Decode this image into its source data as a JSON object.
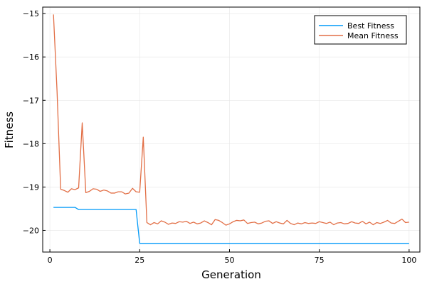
{
  "chart_data": {
    "type": "line",
    "xlabel": "Generation",
    "ylabel": "Fitness",
    "xlim": [
      -2,
      103
    ],
    "ylim": [
      -20.5,
      -14.85
    ],
    "xticks": [
      0,
      25,
      50,
      75,
      100
    ],
    "yticks": [
      -20,
      -19,
      -18,
      -17,
      -16,
      -15
    ],
    "grid": true,
    "legend_position": "top-right",
    "series": [
      {
        "name": "Best Fitness",
        "color": "#009af9",
        "x": [
          1,
          2,
          3,
          4,
          5,
          6,
          7,
          8,
          9,
          10,
          11,
          12,
          13,
          14,
          15,
          16,
          17,
          18,
          19,
          20,
          21,
          22,
          23,
          24,
          25,
          26,
          27,
          28,
          29,
          30,
          31,
          32,
          33,
          34,
          35,
          36,
          37,
          38,
          39,
          40,
          41,
          42,
          43,
          44,
          45,
          46,
          47,
          48,
          49,
          50,
          51,
          52,
          53,
          54,
          55,
          56,
          57,
          58,
          59,
          60,
          61,
          62,
          63,
          64,
          65,
          66,
          67,
          68,
          69,
          70,
          71,
          72,
          73,
          74,
          75,
          76,
          77,
          78,
          79,
          80,
          81,
          82,
          83,
          84,
          85,
          86,
          87,
          88,
          89,
          90,
          91,
          92,
          93,
          94,
          95,
          96,
          97,
          98,
          99,
          100
        ],
        "values": [
          -19.47,
          -19.47,
          -19.47,
          -19.47,
          -19.47,
          -19.47,
          -19.47,
          -19.52,
          -19.52,
          -19.52,
          -19.52,
          -19.52,
          -19.52,
          -19.52,
          -19.52,
          -19.52,
          -19.52,
          -19.52,
          -19.52,
          -19.52,
          -19.52,
          -19.52,
          -19.52,
          -19.52,
          -20.3,
          -20.3,
          -20.3,
          -20.3,
          -20.3,
          -20.3,
          -20.3,
          -20.3,
          -20.3,
          -20.3,
          -20.3,
          -20.3,
          -20.3,
          -20.3,
          -20.3,
          -20.3,
          -20.3,
          -20.3,
          -20.3,
          -20.3,
          -20.3,
          -20.3,
          -20.3,
          -20.3,
          -20.3,
          -20.3,
          -20.3,
          -20.3,
          -20.3,
          -20.3,
          -20.3,
          -20.3,
          -20.3,
          -20.3,
          -20.3,
          -20.3,
          -20.3,
          -20.3,
          -20.3,
          -20.3,
          -20.3,
          -20.3,
          -20.3,
          -20.3,
          -20.3,
          -20.3,
          -20.3,
          -20.3,
          -20.3,
          -20.3,
          -20.3,
          -20.3,
          -20.3,
          -20.3,
          -20.3,
          -20.3,
          -20.3,
          -20.3,
          -20.3,
          -20.3,
          -20.3,
          -20.3,
          -20.3,
          -20.3,
          -20.3,
          -20.3,
          -20.3,
          -20.3,
          -20.3,
          -20.3,
          -20.3,
          -20.3,
          -20.3,
          -20.3,
          -20.3,
          -20.3
        ]
      },
      {
        "name": "Mean Fitness",
        "color": "#e26f46",
        "x": [
          1,
          2,
          3,
          4,
          5,
          6,
          7,
          8,
          9,
          10,
          11,
          12,
          13,
          14,
          15,
          16,
          17,
          18,
          19,
          20,
          21,
          22,
          23,
          24,
          25,
          26,
          27,
          28,
          29,
          30,
          31,
          32,
          33,
          34,
          35,
          36,
          37,
          38,
          39,
          40,
          41,
          42,
          43,
          44,
          45,
          46,
          47,
          48,
          49,
          50,
          51,
          52,
          53,
          54,
          55,
          56,
          57,
          58,
          59,
          60,
          61,
          62,
          63,
          64,
          65,
          66,
          67,
          68,
          69,
          70,
          71,
          72,
          73,
          74,
          75,
          76,
          77,
          78,
          79,
          80,
          81,
          82,
          83,
          84,
          85,
          86,
          87,
          88,
          89,
          90,
          91,
          92,
          93,
          94,
          95,
          96,
          97,
          98,
          99,
          100
        ],
        "values": [
          -15.02,
          -16.8,
          -19.05,
          -19.08,
          -19.12,
          -19.04,
          -19.06,
          -19.02,
          -17.52,
          -19.13,
          -19.1,
          -19.04,
          -19.05,
          -19.1,
          -19.07,
          -19.09,
          -19.14,
          -19.14,
          -19.11,
          -19.11,
          -19.16,
          -19.14,
          -19.03,
          -19.11,
          -19.12,
          -17.85,
          -19.82,
          -19.87,
          -19.82,
          -19.85,
          -19.78,
          -19.81,
          -19.86,
          -19.83,
          -19.84,
          -19.8,
          -19.81,
          -19.79,
          -19.84,
          -19.81,
          -19.85,
          -19.83,
          -19.78,
          -19.82,
          -19.87,
          -19.75,
          -19.77,
          -19.82,
          -19.88,
          -19.85,
          -19.8,
          -19.77,
          -19.78,
          -19.76,
          -19.84,
          -19.82,
          -19.81,
          -19.85,
          -19.83,
          -19.79,
          -19.78,
          -19.84,
          -19.8,
          -19.83,
          -19.85,
          -19.77,
          -19.84,
          -19.87,
          -19.83,
          -19.85,
          -19.82,
          -19.84,
          -19.83,
          -19.84,
          -19.8,
          -19.82,
          -19.84,
          -19.81,
          -19.87,
          -19.83,
          -19.82,
          -19.85,
          -19.84,
          -19.8,
          -19.83,
          -19.84,
          -19.79,
          -19.85,
          -19.81,
          -19.87,
          -19.82,
          -19.84,
          -19.81,
          -19.77,
          -19.83,
          -19.84,
          -19.79,
          -19.74,
          -19.82,
          -19.81
        ]
      }
    ]
  }
}
